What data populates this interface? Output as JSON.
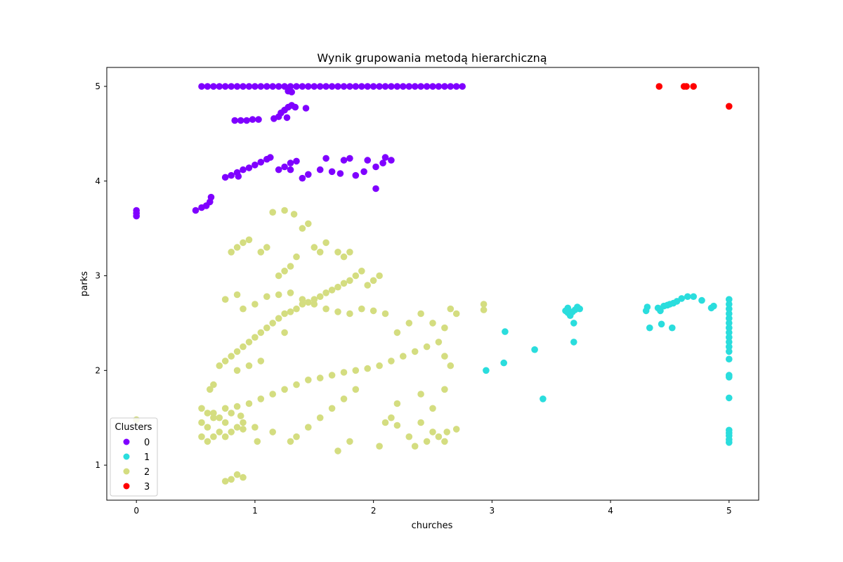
{
  "chart_data": {
    "type": "scatter",
    "title": "Wynik grupowania metodą hierarchiczną",
    "xlabel": "churches",
    "ylabel": "parks",
    "xlim": [
      -0.25,
      5.25
    ],
    "ylim": [
      0.63,
      5.2
    ],
    "xticks": [
      0,
      1,
      2,
      3,
      4,
      5
    ],
    "yticks": [
      1,
      2,
      3,
      4,
      5
    ],
    "grid": false,
    "legend": {
      "title": "Clusters",
      "placement": "lower-left",
      "entries": [
        "0",
        "1",
        "2",
        "3"
      ]
    },
    "series": [
      {
        "name": "0",
        "color": "#7f00ff",
        "points": [
          [
            0.0,
            3.63
          ],
          [
            0.0,
            3.66
          ],
          [
            0.0,
            3.69
          ],
          [
            0.55,
            5.0
          ],
          [
            0.6,
            5.0
          ],
          [
            0.65,
            5.0
          ],
          [
            0.7,
            5.0
          ],
          [
            0.75,
            5.0
          ],
          [
            0.8,
            5.0
          ],
          [
            0.85,
            5.0
          ],
          [
            0.9,
            5.0
          ],
          [
            0.95,
            5.0
          ],
          [
            1.0,
            5.0
          ],
          [
            1.05,
            5.0
          ],
          [
            1.1,
            5.0
          ],
          [
            1.15,
            5.0
          ],
          [
            1.2,
            5.0
          ],
          [
            1.25,
            5.0
          ],
          [
            1.3,
            5.0
          ],
          [
            1.35,
            5.0
          ],
          [
            1.4,
            5.0
          ],
          [
            1.45,
            5.0
          ],
          [
            1.5,
            5.0
          ],
          [
            1.55,
            5.0
          ],
          [
            1.6,
            5.0
          ],
          [
            1.65,
            5.0
          ],
          [
            1.7,
            5.0
          ],
          [
            1.75,
            5.0
          ],
          [
            1.8,
            5.0
          ],
          [
            1.85,
            5.0
          ],
          [
            1.9,
            5.0
          ],
          [
            1.95,
            5.0
          ],
          [
            2.0,
            5.0
          ],
          [
            2.05,
            5.0
          ],
          [
            2.1,
            5.0
          ],
          [
            2.15,
            5.0
          ],
          [
            2.2,
            5.0
          ],
          [
            2.25,
            5.0
          ],
          [
            2.3,
            5.0
          ],
          [
            2.35,
            5.0
          ],
          [
            2.4,
            5.0
          ],
          [
            2.45,
            5.0
          ],
          [
            2.5,
            5.0
          ],
          [
            2.55,
            5.0
          ],
          [
            2.6,
            5.0
          ],
          [
            2.65,
            5.0
          ],
          [
            2.7,
            5.0
          ],
          [
            2.75,
            5.0
          ],
          [
            1.28,
            4.95
          ],
          [
            1.31,
            4.94
          ],
          [
            0.83,
            4.64
          ],
          [
            0.88,
            4.64
          ],
          [
            0.93,
            4.64
          ],
          [
            0.98,
            4.65
          ],
          [
            1.03,
            4.65
          ],
          [
            1.16,
            4.66
          ],
          [
            1.2,
            4.68
          ],
          [
            1.22,
            4.72
          ],
          [
            1.25,
            4.75
          ],
          [
            1.28,
            4.78
          ],
          [
            1.31,
            4.8
          ],
          [
            1.34,
            4.78
          ],
          [
            1.27,
            4.67
          ],
          [
            1.43,
            4.77
          ],
          [
            0.5,
            3.69
          ],
          [
            0.55,
            3.72
          ],
          [
            0.59,
            3.74
          ],
          [
            0.62,
            3.78
          ],
          [
            0.63,
            3.83
          ],
          [
            0.75,
            4.04
          ],
          [
            0.8,
            4.06
          ],
          [
            0.85,
            4.09
          ],
          [
            0.9,
            4.12
          ],
          [
            0.95,
            4.14
          ],
          [
            1.0,
            4.17
          ],
          [
            1.05,
            4.2
          ],
          [
            1.1,
            4.23
          ],
          [
            1.13,
            4.25
          ],
          [
            0.86,
            4.05
          ],
          [
            1.2,
            4.12
          ],
          [
            1.25,
            4.15
          ],
          [
            1.3,
            4.19
          ],
          [
            1.35,
            4.21
          ],
          [
            1.3,
            4.12
          ],
          [
            1.4,
            4.03
          ],
          [
            1.45,
            4.07
          ],
          [
            1.55,
            4.12
          ],
          [
            1.6,
            4.24
          ],
          [
            1.65,
            4.1
          ],
          [
            1.75,
            4.22
          ],
          [
            1.8,
            4.24
          ],
          [
            1.72,
            4.08
          ],
          [
            1.85,
            4.06
          ],
          [
            1.92,
            4.1
          ],
          [
            1.95,
            4.22
          ],
          [
            2.02,
            4.15
          ],
          [
            2.08,
            4.19
          ],
          [
            2.1,
            4.25
          ],
          [
            2.15,
            4.22
          ],
          [
            2.02,
            3.92
          ]
        ]
      },
      {
        "name": "1",
        "color": "#2adddd",
        "points": [
          [
            2.95,
            2.0
          ],
          [
            3.1,
            2.08
          ],
          [
            3.11,
            2.41
          ],
          [
            3.36,
            2.22
          ],
          [
            3.43,
            1.7
          ],
          [
            3.62,
            2.63
          ],
          [
            3.64,
            2.61
          ],
          [
            3.66,
            2.58
          ],
          [
            3.68,
            2.62
          ],
          [
            3.64,
            2.66
          ],
          [
            3.7,
            2.64
          ],
          [
            3.72,
            2.67
          ],
          [
            3.74,
            2.65
          ],
          [
            3.69,
            2.5
          ],
          [
            3.69,
            2.3
          ],
          [
            4.3,
            2.63
          ],
          [
            4.31,
            2.67
          ],
          [
            4.33,
            2.45
          ],
          [
            4.4,
            2.66
          ],
          [
            4.42,
            2.63
          ],
          [
            4.45,
            2.68
          ],
          [
            4.48,
            2.69
          ],
          [
            4.5,
            2.7
          ],
          [
            4.53,
            2.71
          ],
          [
            4.56,
            2.73
          ],
          [
            4.6,
            2.76
          ],
          [
            4.65,
            2.78
          ],
          [
            4.7,
            2.78
          ],
          [
            4.43,
            2.49
          ],
          [
            4.52,
            2.45
          ],
          [
            4.77,
            2.74
          ],
          [
            4.85,
            2.66
          ],
          [
            4.87,
            2.68
          ],
          [
            5.0,
            2.75
          ],
          [
            5.0,
            2.7
          ],
          [
            5.0,
            2.65
          ],
          [
            5.0,
            2.6
          ],
          [
            5.0,
            2.55
          ],
          [
            5.0,
            2.5
          ],
          [
            5.0,
            2.45
          ],
          [
            5.0,
            2.4
          ],
          [
            5.0,
            2.35
          ],
          [
            5.0,
            2.3
          ],
          [
            5.0,
            2.25
          ],
          [
            5.0,
            2.2
          ],
          [
            5.0,
            2.12
          ],
          [
            5.0,
            1.95
          ],
          [
            5.0,
            1.93
          ],
          [
            5.0,
            1.71
          ],
          [
            5.0,
            1.37
          ],
          [
            5.0,
            1.34
          ],
          [
            5.0,
            1.31
          ],
          [
            5.0,
            1.27
          ],
          [
            5.0,
            1.24
          ]
        ]
      },
      {
        "name": "2",
        "color": "#d4dd80",
        "points": [
          [
            0.0,
            1.48
          ],
          [
            0.55,
            1.3
          ],
          [
            0.55,
            1.45
          ],
          [
            0.55,
            1.6
          ],
          [
            0.6,
            1.25
          ],
          [
            0.6,
            1.4
          ],
          [
            0.6,
            1.55
          ],
          [
            0.65,
            1.3
          ],
          [
            0.65,
            1.5
          ],
          [
            0.7,
            1.35
          ],
          [
            0.7,
            1.5
          ],
          [
            0.75,
            1.3
          ],
          [
            0.75,
            1.45
          ],
          [
            0.8,
            1.35
          ],
          [
            0.8,
            1.55
          ],
          [
            0.85,
            1.4
          ],
          [
            0.9,
            1.45
          ],
          [
            0.62,
            1.8
          ],
          [
            0.65,
            1.85
          ],
          [
            0.7,
            2.05
          ],
          [
            0.75,
            2.1
          ],
          [
            0.8,
            2.15
          ],
          [
            0.85,
            2.2
          ],
          [
            0.9,
            2.25
          ],
          [
            0.95,
            2.3
          ],
          [
            1.0,
            2.35
          ],
          [
            1.05,
            2.4
          ],
          [
            1.1,
            2.45
          ],
          [
            1.15,
            2.5
          ],
          [
            1.2,
            2.55
          ],
          [
            1.25,
            2.6
          ],
          [
            1.3,
            2.62
          ],
          [
            1.35,
            2.65
          ],
          [
            1.4,
            2.7
          ],
          [
            1.45,
            2.72
          ],
          [
            1.5,
            2.75
          ],
          [
            1.55,
            2.78
          ],
          [
            1.6,
            2.82
          ],
          [
            1.65,
            2.85
          ],
          [
            1.7,
            2.88
          ],
          [
            1.75,
            2.92
          ],
          [
            1.8,
            2.95
          ],
          [
            1.85,
            3.0
          ],
          [
            1.9,
            3.05
          ],
          [
            1.95,
            2.9
          ],
          [
            2.0,
            2.95
          ],
          [
            2.05,
            3.0
          ],
          [
            0.65,
            1.55
          ],
          [
            0.75,
            1.6
          ],
          [
            0.85,
            1.62
          ],
          [
            0.95,
            1.65
          ],
          [
            1.05,
            1.7
          ],
          [
            1.15,
            1.75
          ],
          [
            1.25,
            1.8
          ],
          [
            1.35,
            1.85
          ],
          [
            1.45,
            1.9
          ],
          [
            1.55,
            1.92
          ],
          [
            1.65,
            1.95
          ],
          [
            1.75,
            1.98
          ],
          [
            1.85,
            2.0
          ],
          [
            1.95,
            2.02
          ],
          [
            2.05,
            2.05
          ],
          [
            2.15,
            2.1
          ],
          [
            2.25,
            2.15
          ],
          [
            2.35,
            2.2
          ],
          [
            2.45,
            2.25
          ],
          [
            2.55,
            2.3
          ],
          [
            2.6,
            2.15
          ],
          [
            2.65,
            2.05
          ],
          [
            0.75,
            2.75
          ],
          [
            0.85,
            2.8
          ],
          [
            0.9,
            2.65
          ],
          [
            1.0,
            2.7
          ],
          [
            1.1,
            2.78
          ],
          [
            1.2,
            2.8
          ],
          [
            1.3,
            2.82
          ],
          [
            1.4,
            2.75
          ],
          [
            1.5,
            2.7
          ],
          [
            1.6,
            2.65
          ],
          [
            1.7,
            2.62
          ],
          [
            1.8,
            2.6
          ],
          [
            1.9,
            2.65
          ],
          [
            2.0,
            2.63
          ],
          [
            2.1,
            2.6
          ],
          [
            2.2,
            2.4
          ],
          [
            2.3,
            2.5
          ],
          [
            2.4,
            2.6
          ],
          [
            2.5,
            2.5
          ],
          [
            2.6,
            2.45
          ],
          [
            2.65,
            2.65
          ],
          [
            2.7,
            2.6
          ],
          [
            2.93,
            2.7
          ],
          [
            2.93,
            2.64
          ],
          [
            0.8,
            3.25
          ],
          [
            0.85,
            3.3
          ],
          [
            0.9,
            3.35
          ],
          [
            0.95,
            3.38
          ],
          [
            1.05,
            3.25
          ],
          [
            1.1,
            3.3
          ],
          [
            1.15,
            3.67
          ],
          [
            1.2,
            3.0
          ],
          [
            1.25,
            3.05
          ],
          [
            1.3,
            3.1
          ],
          [
            1.35,
            3.2
          ],
          [
            1.4,
            3.5
          ],
          [
            1.45,
            3.55
          ],
          [
            1.5,
            3.3
          ],
          [
            1.55,
            3.25
          ],
          [
            1.6,
            3.35
          ],
          [
            1.7,
            3.25
          ],
          [
            1.75,
            3.2
          ],
          [
            1.8,
            3.25
          ],
          [
            1.25,
            3.69
          ],
          [
            1.33,
            3.65
          ],
          [
            1.25,
            2.4
          ],
          [
            0.85,
            2.0
          ],
          [
            0.95,
            2.05
          ],
          [
            1.05,
            2.1
          ],
          [
            0.9,
            1.38
          ],
          [
            1.0,
            1.4
          ],
          [
            1.15,
            1.35
          ],
          [
            1.3,
            1.25
          ],
          [
            1.35,
            1.3
          ],
          [
            1.45,
            1.4
          ],
          [
            1.55,
            1.5
          ],
          [
            1.65,
            1.6
          ],
          [
            1.75,
            1.7
          ],
          [
            1.85,
            1.8
          ],
          [
            1.7,
            1.15
          ],
          [
            1.8,
            1.25
          ],
          [
            2.05,
            1.2
          ],
          [
            2.1,
            1.45
          ],
          [
            2.15,
            1.5
          ],
          [
            2.2,
            1.42
          ],
          [
            2.3,
            1.3
          ],
          [
            2.35,
            1.2
          ],
          [
            2.45,
            1.25
          ],
          [
            2.5,
            1.35
          ],
          [
            2.55,
            1.3
          ],
          [
            2.62,
            1.35
          ],
          [
            2.7,
            1.38
          ],
          [
            2.6,
            1.25
          ],
          [
            2.2,
            1.65
          ],
          [
            2.4,
            1.75
          ],
          [
            2.6,
            1.8
          ],
          [
            2.4,
            1.45
          ],
          [
            2.5,
            1.6
          ],
          [
            0.8,
            0.85
          ],
          [
            0.85,
            0.9
          ],
          [
            0.9,
            0.87
          ],
          [
            0.75,
            0.83
          ],
          [
            0.88,
            1.52
          ],
          [
            1.02,
            1.25
          ]
        ]
      },
      {
        "name": "3",
        "color": "#ff0000",
        "points": [
          [
            4.41,
            5.0
          ],
          [
            4.62,
            5.0
          ],
          [
            4.64,
            5.0
          ],
          [
            4.7,
            5.0
          ],
          [
            5.0,
            4.79
          ]
        ]
      }
    ]
  }
}
